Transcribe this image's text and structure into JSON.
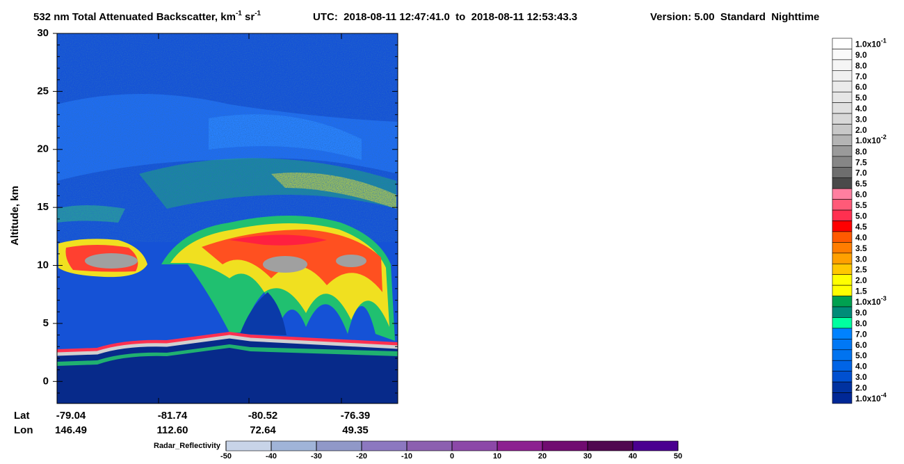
{
  "chart_data": {
    "type": "curtain",
    "title_parts": [
      "532 nm Total Attenuated Backscatter, km",
      "-1",
      " sr",
      "-1"
    ],
    "time_range": "UTC:  2018-08-11 12:47:41.0  to  2018-08-11 12:53:43.3",
    "version": "Version: 5.00  Standard  Nighttime",
    "y_label": "Altitude, km",
    "ylim": [
      -1.9,
      30
    ],
    "yticks": [
      0,
      5,
      10,
      15,
      20,
      25,
      30
    ],
    "x_row_labels": [
      "Lat",
      "Lon"
    ],
    "lat": [
      "-79.04",
      "-81.74",
      "-80.52",
      "-76.39"
    ],
    "lon": [
      "146.49",
      "112.60",
      "72.64",
      "49.35"
    ],
    "colorbar": {
      "labels": [
        {
          "text": "1.0x10",
          "exp": "-1"
        },
        "9.0",
        "8.0",
        "7.0",
        "6.0",
        "5.0",
        "4.0",
        "3.0",
        "2.0",
        {
          "text": "1.0x10",
          "exp": "-2"
        },
        "8.0",
        "7.5",
        "7.0",
        "6.5",
        "6.0",
        "5.5",
        "5.0",
        "4.5",
        "4.0",
        "3.5",
        "3.0",
        "2.5",
        "2.0",
        "1.5",
        {
          "text": "1.0x10",
          "exp": "-3"
        },
        "9.0",
        "8.0",
        "7.0",
        "6.0",
        "5.0",
        "4.0",
        "3.0",
        "2.0",
        {
          "text": "1.0x10",
          "exp": "-4"
        }
      ],
      "colors": [
        "#ffffff",
        "#fafafa",
        "#f5f5f5",
        "#f0f0f0",
        "#ebebeb",
        "#e6e6e6",
        "#e0e0e0",
        "#d8d8d8",
        "#c8c8c8",
        "#b4b4b4",
        "#9a9a9a",
        "#868686",
        "#6e6e6e",
        "#4a4a4a",
        "#ff7fa0",
        "#ff5a78",
        "#ff3050",
        "#ff0000",
        "#ff5a00",
        "#ff7d00",
        "#ffa000",
        "#ffc800",
        "#ffff00",
        "#ffff00",
        "#00a050",
        "#008c78",
        "#00ffa0",
        "#0082ff",
        "#0078f5",
        "#0073f0",
        "#0064e6",
        "#0050d0",
        "#0032a0",
        "#002896"
      ]
    },
    "radar_colorbar": {
      "label": "Radar_Reflectivity",
      "lim": [
        -50,
        50
      ],
      "ticks": [
        -50,
        -40,
        -30,
        -20,
        -10,
        0,
        10,
        20,
        30,
        40,
        50
      ],
      "colors": [
        "#c8d4e8",
        "#a0b4d8",
        "#9098c8",
        "#8c78c0",
        "#8c60b0",
        "#8c48a8",
        "#8c2090",
        "#700c70",
        "#500850",
        "#4a0090"
      ]
    }
  }
}
